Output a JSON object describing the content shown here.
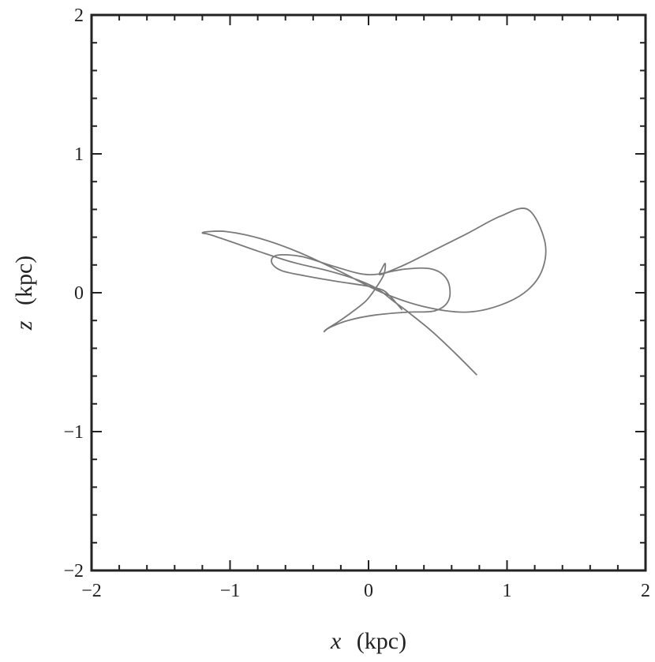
{
  "chart_data": {
    "type": "line",
    "title": "",
    "xlabel_var": "x",
    "xlabel_unit": "(kpc)",
    "ylabel_var": "z",
    "ylabel_unit": "(kpc)",
    "xlim": [
      -2,
      2
    ],
    "ylim": [
      -2,
      2
    ],
    "x_ticks": [
      -2,
      -1,
      0,
      1,
      2
    ],
    "y_ticks": [
      -2,
      -1,
      0,
      1,
      2
    ],
    "x_tick_labels": [
      "−2",
      "−1",
      "0",
      "1",
      "2"
    ],
    "y_tick_labels": [
      "−2",
      "−1",
      "0",
      "1",
      "2"
    ],
    "minor_tick_step": 0.2,
    "grid": false,
    "line_color": "#7a7a7a",
    "series": [
      {
        "x": [
          0.78,
          0.62,
          0.46,
          0.3,
          0.18,
          0.06,
          -0.1,
          -0.3,
          -0.55,
          -0.8,
          -1.0,
          -1.15,
          -1.2,
          -1.16,
          -1.02,
          -0.78,
          -0.5,
          -0.2,
          0.1,
          0.4,
          0.7,
          0.95,
          1.15,
          1.26,
          1.27,
          1.15,
          0.95,
          0.72,
          0.48,
          0.28,
          0.14,
          0.08,
          0.09,
          0.12,
          0.11,
          0.05,
          -0.02,
          -0.12,
          -0.22,
          -0.3,
          -0.32,
          -0.28,
          -0.15,
          0.05,
          0.28,
          0.48,
          0.58,
          0.57,
          0.46,
          0.26,
          0.0,
          -0.25,
          -0.48,
          -0.66,
          -0.7,
          -0.63,
          -0.45,
          -0.22,
          -0.02,
          0.1,
          0.16,
          0.24
        ],
        "y": [
          -0.59,
          -0.43,
          -0.28,
          -0.15,
          -0.06,
          0.03,
          0.1,
          0.16,
          0.22,
          0.3,
          0.37,
          0.42,
          0.43,
          0.44,
          0.44,
          0.39,
          0.29,
          0.15,
          0.0,
          -0.1,
          -0.14,
          -0.09,
          0.02,
          0.18,
          0.38,
          0.6,
          0.55,
          0.43,
          0.31,
          0.21,
          0.15,
          0.13,
          0.16,
          0.21,
          0.13,
          0.03,
          -0.06,
          -0.14,
          -0.21,
          -0.26,
          -0.28,
          -0.25,
          -0.2,
          -0.16,
          -0.14,
          -0.13,
          -0.05,
          0.09,
          0.17,
          0.17,
          0.13,
          0.19,
          0.26,
          0.27,
          0.22,
          0.16,
          0.12,
          0.08,
          0.05,
          0.02,
          -0.03,
          -0.12
        ]
      }
    ]
  }
}
